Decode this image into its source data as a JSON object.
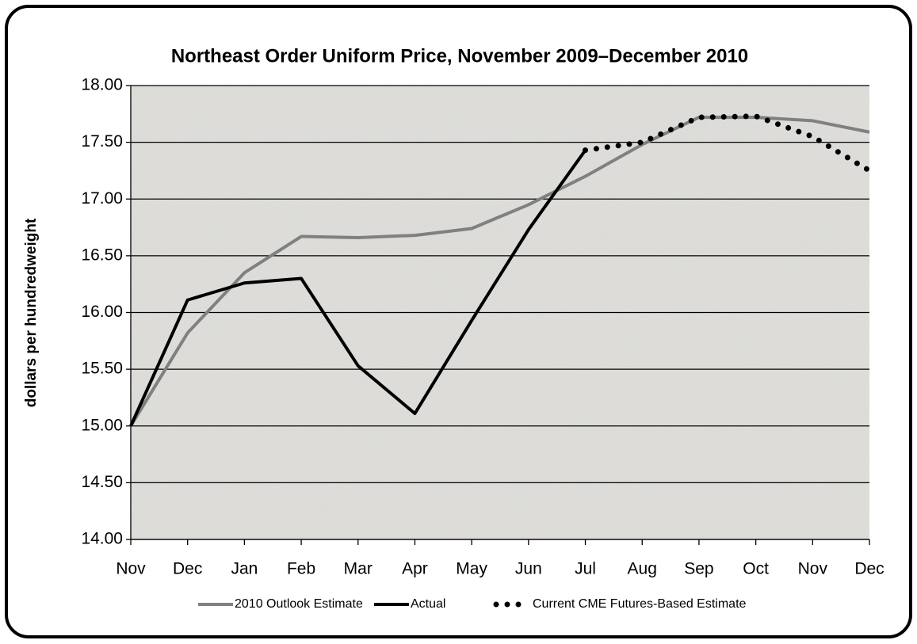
{
  "chart_data": {
    "type": "line",
    "title": "Northeast Order Uniform Price, November 2009–December 2010",
    "y_label": "dollars per hundredweight",
    "categories": [
      "Nov",
      "Dec",
      "Jan",
      "Feb",
      "Mar",
      "Apr",
      "May",
      "Jun",
      "Jul",
      "Aug",
      "Sep",
      "Oct",
      "Nov",
      "Dec"
    ],
    "series": [
      {
        "name": "2010 Outlook Estimate",
        "color": "#808080",
        "line_style": "solid",
        "values": [
          15.0,
          15.82,
          16.35,
          16.67,
          16.66,
          16.68,
          16.74,
          16.95,
          17.2,
          17.48,
          17.72,
          17.72,
          17.69,
          17.59
        ]
      },
      {
        "name": "Actual",
        "color": "#000000",
        "line_style": "solid",
        "values": [
          15.0,
          16.11,
          16.26,
          16.3,
          15.53,
          15.11,
          15.93,
          16.73,
          17.43,
          null,
          null,
          null,
          null,
          null
        ]
      },
      {
        "name": "Current CME Futures-Based Estimate",
        "color": "#000000",
        "line_style": "dotted",
        "values": [
          null,
          null,
          null,
          null,
          null,
          null,
          null,
          null,
          17.43,
          17.5,
          17.72,
          17.73,
          17.55,
          17.25
        ]
      }
    ],
    "ylim": [
      14,
      18
    ],
    "yticks": [
      {
        "value": 14,
        "label": "14.00"
      },
      {
        "value": 14.5,
        "label": "14.50"
      },
      {
        "value": 15,
        "label": "15.00"
      },
      {
        "value": 15.5,
        "label": "15.50"
      },
      {
        "value": 16,
        "label": "16.00"
      },
      {
        "value": 16.5,
        "label": "16.50"
      },
      {
        "value": 17,
        "label": "17.00"
      },
      {
        "value": 17.5,
        "label": "17.50"
      },
      {
        "value": 18,
        "label": "18.00"
      }
    ],
    "grid": true,
    "legend": "bottom"
  }
}
